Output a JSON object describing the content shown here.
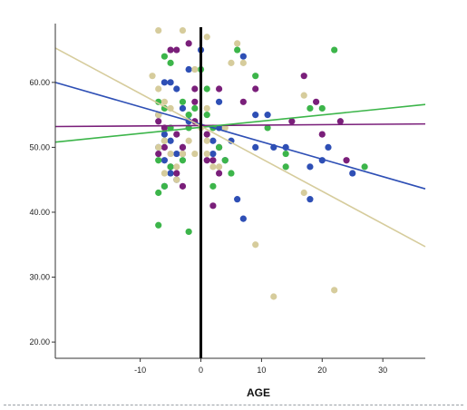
{
  "chart_data": {
    "type": "scatter",
    "title": "",
    "xlabel": "AGE",
    "ylabel": "",
    "xlim": [
      -24,
      37
    ],
    "ylim": [
      17.5,
      68.5
    ],
    "x_ticks": [
      -10,
      0,
      10,
      20,
      30
    ],
    "x_tick_labels": [
      "-10",
      "0",
      "10",
      "20",
      "30"
    ],
    "y_ticks": [
      20,
      30,
      40,
      50,
      60
    ],
    "y_tick_labels": [
      "20.00",
      "30.00",
      "40.00",
      "50.00",
      "60.00"
    ],
    "grid": false,
    "legend": "none",
    "vertical_reference_line_x": 0,
    "series": [
      {
        "color": "#2e4fb5",
        "points": [
          [
            -6,
            60
          ],
          [
            -5,
            60
          ],
          [
            -4,
            59
          ],
          [
            -7,
            55
          ],
          [
            -6,
            52
          ],
          [
            -5,
            51
          ],
          [
            -7,
            50
          ],
          [
            -3,
            56
          ],
          [
            -2,
            54
          ],
          [
            -3,
            50
          ],
          [
            -4,
            49
          ],
          [
            -6,
            48
          ],
          [
            -5,
            46
          ],
          [
            -4,
            45
          ],
          [
            -6,
            44
          ],
          [
            -2,
            62
          ],
          [
            0,
            65
          ],
          [
            3,
            57
          ],
          [
            3,
            53
          ],
          [
            2,
            51
          ],
          [
            5,
            51
          ],
          [
            2,
            49
          ],
          [
            4,
            48
          ],
          [
            6,
            42
          ],
          [
            7,
            39
          ],
          [
            7,
            64
          ],
          [
            9,
            55
          ],
          [
            9,
            50
          ],
          [
            11,
            55
          ],
          [
            12,
            50
          ],
          [
            14,
            50
          ],
          [
            18,
            47
          ],
          [
            18,
            42
          ],
          [
            20,
            48
          ],
          [
            21,
            50
          ],
          [
            25,
            46
          ]
        ],
        "fit_line": [
          [
            -24,
            60
          ],
          [
            37,
            43.6
          ]
        ]
      },
      {
        "color": "#7a1f7a",
        "points": [
          [
            -7,
            54
          ],
          [
            -6,
            53
          ],
          [
            -5,
            65
          ],
          [
            -4,
            65
          ],
          [
            -2,
            66
          ],
          [
            -6,
            50
          ],
          [
            -7,
            49
          ],
          [
            -4,
            52
          ],
          [
            -3,
            50
          ],
          [
            -5,
            47
          ],
          [
            -3,
            49
          ],
          [
            -4,
            46
          ],
          [
            -3,
            44
          ],
          [
            -1,
            57
          ],
          [
            -1,
            54
          ],
          [
            1,
            52
          ],
          [
            1,
            48
          ],
          [
            3,
            50
          ],
          [
            3,
            46
          ],
          [
            2,
            48
          ],
          [
            2,
            41
          ],
          [
            3,
            59
          ],
          [
            -1,
            59
          ],
          [
            7,
            57
          ],
          [
            9,
            59
          ],
          [
            15,
            54
          ],
          [
            17,
            61
          ],
          [
            19,
            57
          ],
          [
            20,
            52
          ],
          [
            23,
            54
          ],
          [
            24,
            48
          ]
        ],
        "fit_line": [
          [
            -24,
            53.2
          ],
          [
            37,
            53.6
          ]
        ]
      },
      {
        "color": "#3cb54a",
        "points": [
          [
            -6,
            64
          ],
          [
            -5,
            63
          ],
          [
            -7,
            57
          ],
          [
            -6,
            56
          ],
          [
            -5,
            53
          ],
          [
            -6,
            51
          ],
          [
            -7,
            48
          ],
          [
            -5,
            47
          ],
          [
            -6,
            44
          ],
          [
            -7,
            43
          ],
          [
            -7,
            38
          ],
          [
            -3,
            57
          ],
          [
            -2,
            55
          ],
          [
            -2,
            53
          ],
          [
            -3,
            48
          ],
          [
            -1,
            56
          ],
          [
            0,
            62
          ],
          [
            1,
            59
          ],
          [
            1,
            55
          ],
          [
            2,
            53
          ],
          [
            3,
            50
          ],
          [
            4,
            48
          ],
          [
            5,
            46
          ],
          [
            2,
            44
          ],
          [
            -2,
            37
          ],
          [
            6,
            65
          ],
          [
            9,
            61
          ],
          [
            11,
            53
          ],
          [
            14,
            47
          ],
          [
            14,
            49
          ],
          [
            18,
            56
          ],
          [
            20,
            56
          ],
          [
            22,
            65
          ],
          [
            27,
            47
          ]
        ],
        "fit_line": [
          [
            -24,
            50.8
          ],
          [
            37,
            56.6
          ]
        ]
      },
      {
        "color": "#d6cc9c",
        "points": [
          [
            -7,
            68
          ],
          [
            -3,
            68
          ],
          [
            -8,
            61
          ],
          [
            -7,
            59
          ],
          [
            -6,
            57
          ],
          [
            -5,
            56
          ],
          [
            -7,
            55
          ],
          [
            -6,
            51
          ],
          [
            -7,
            50
          ],
          [
            -5,
            49
          ],
          [
            -4,
            47
          ],
          [
            -6,
            46
          ],
          [
            -4,
            45
          ],
          [
            -2,
            51
          ],
          [
            -3,
            49
          ],
          [
            -1,
            49
          ],
          [
            0,
            53
          ],
          [
            1,
            51
          ],
          [
            1,
            49
          ],
          [
            2,
            47
          ],
          [
            1,
            56
          ],
          [
            3,
            47
          ],
          [
            -1,
            62
          ],
          [
            1,
            67
          ],
          [
            5,
            63
          ],
          [
            6,
            66
          ],
          [
            7,
            63
          ],
          [
            4,
            53
          ],
          [
            9,
            35
          ],
          [
            12,
            27
          ],
          [
            17,
            58
          ],
          [
            17,
            43
          ],
          [
            22,
            28
          ]
        ],
        "fit_line": [
          [
            -24,
            65.3
          ],
          [
            37,
            34.7
          ]
        ]
      }
    ]
  }
}
